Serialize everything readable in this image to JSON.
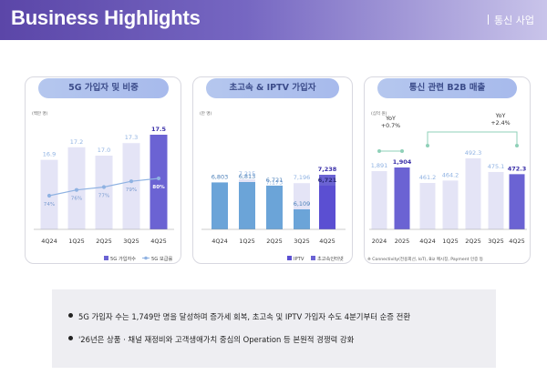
{
  "header": {
    "title": "Business Highlights",
    "section": "통신 사업"
  },
  "panels": [
    {
      "title": "5G 가입자 및 비중",
      "unit": "(백만 명)"
    },
    {
      "title": "초고속 & IPTV 가입자",
      "unit": "(만 명)"
    },
    {
      "title": "통신 관련 B2B 매출",
      "unit": "(십억 원)"
    }
  ],
  "chart_data": [
    {
      "type": "bar",
      "title": "5G 가입자 및 비중",
      "unit": "(백만 명)",
      "categories": [
        "4Q24",
        "1Q25",
        "2Q25",
        "3Q25",
        "4Q25"
      ],
      "series": [
        {
          "name": "5G 가입자수",
          "values": [
            16.9,
            17.2,
            17.0,
            17.3,
            17.5
          ],
          "labels": [
            "16.9",
            "17.2",
            "17.0",
            "17.3",
            "17.5"
          ]
        },
        {
          "name": "5G 보급률",
          "values": [
            74,
            76,
            77,
            79,
            80
          ],
          "labels": [
            "74%",
            "76%",
            "77%",
            "79%",
            "80%"
          ]
        }
      ],
      "colors": {
        "bar": "#e4e4f6",
        "bar_highlight": "#6b63d3",
        "line": "#8fb2e2"
      },
      "legend_position": "bottom-right"
    },
    {
      "type": "bar",
      "title": "초고속 & IPTV 가입자",
      "unit": "(만 명)",
      "categories": [
        "4Q24",
        "1Q25",
        "2Q25",
        "3Q25",
        "4Q25"
      ],
      "series": [
        {
          "name": "IPTV",
          "values": [
            6803,
            6813,
            6721,
            6109,
            6721
          ],
          "labels": [
            "6,803",
            "6,813",
            "6,721",
            "6,109",
            "6,721"
          ]
        },
        {
          "name": "초고속인터넷",
          "values": [
            7156,
            7215,
            7173,
            7196,
            7238
          ],
          "labels": [
            "7,156",
            "7,215",
            "7,173",
            "7,196",
            "7,238"
          ]
        }
      ],
      "colors": {
        "iptv": "#6ba4d8",
        "iptv_highlight": "#5b4fd2",
        "internet": "#e4e4f6",
        "internet_highlight": "#6b63d3"
      },
      "legend_position": "bottom-right"
    },
    {
      "type": "bar",
      "title": "통신 관련 B2B 매출",
      "unit": "(십억 원)",
      "groups": [
        {
          "categories": [
            "2024",
            "2025"
          ],
          "values": [
            1891,
            1904
          ],
          "labels": [
            "1,891",
            "1,904"
          ],
          "yoy": "YoY\n+0.7%"
        },
        {
          "categories": [
            "4Q24",
            "1Q25",
            "2Q25",
            "3Q25",
            "4Q25"
          ],
          "values": [
            461.2,
            464.2,
            492.3,
            475.1,
            472.3
          ],
          "labels": [
            "461.2",
            "464.2",
            "492.3",
            "475.1",
            "472.3"
          ],
          "yoy": "YoY\n+2.4%"
        }
      ],
      "note": "※ Connectivity(전용회선, IoT), Biz 메시징, Payment 인증 등",
      "colors": {
        "bar": "#e4e4f6",
        "bar_highlight": "#6b63d3",
        "yoy": "#8fd0b8"
      }
    }
  ],
  "bullets": [
    "5G 가입자 수는 1,749만 명을 달성하며 증가세 회복, 초고속 및 IPTV 가입자 수도 4분기부터 순증 전환",
    "'26년은 상품 · 채널 재정비와 고객생애가치 중심의 Operation 등 본원적 경쟁력 강화"
  ]
}
